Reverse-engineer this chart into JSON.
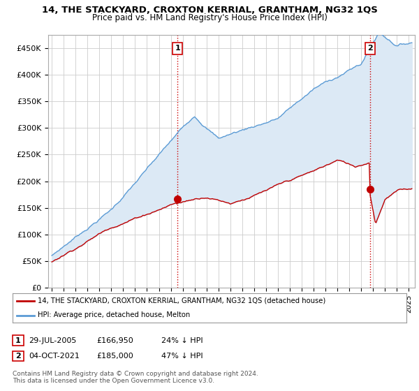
{
  "title": "14, THE STACKYARD, CROXTON KERRIAL, GRANTHAM, NG32 1QS",
  "subtitle": "Price paid vs. HM Land Registry's House Price Index (HPI)",
  "ylabel_ticks": [
    "£0",
    "£50K",
    "£100K",
    "£150K",
    "£200K",
    "£250K",
    "£300K",
    "£350K",
    "£400K",
    "£450K"
  ],
  "ytick_values": [
    0,
    50000,
    100000,
    150000,
    200000,
    250000,
    300000,
    350000,
    400000,
    450000
  ],
  "ylim": [
    0,
    475000
  ],
  "xlim_start": 1994.7,
  "xlim_end": 2025.5,
  "hpi_color": "#5b9bd5",
  "hpi_fill_color": "#dce9f5",
  "price_color": "#c00000",
  "purchase1_x": 2005.57,
  "purchase1_y": 166950,
  "purchase2_x": 2021.75,
  "purchase2_y": 185000,
  "vline_color": "#cc0000",
  "annotation_box_color": "#cc0000",
  "legend_label_red": "14, THE STACKYARD, CROXTON KERRIAL, GRANTHAM, NG32 1QS (detached house)",
  "legend_label_blue": "HPI: Average price, detached house, Melton",
  "table_row1": [
    "1",
    "29-JUL-2005",
    "£166,950",
    "24% ↓ HPI"
  ],
  "table_row2": [
    "2",
    "04-OCT-2021",
    "£185,000",
    "47% ↓ HPI"
  ],
  "footnote": "Contains HM Land Registry data © Crown copyright and database right 2024.\nThis data is licensed under the Open Government Licence v3.0.",
  "bg_color": "#ffffff",
  "grid_color": "#cccccc",
  "xtick_years": [
    1995,
    1996,
    1997,
    1998,
    1999,
    2000,
    2001,
    2002,
    2003,
    2004,
    2005,
    2006,
    2007,
    2008,
    2009,
    2010,
    2011,
    2012,
    2013,
    2014,
    2015,
    2016,
    2017,
    2018,
    2019,
    2020,
    2021,
    2022,
    2023,
    2024,
    2025
  ]
}
